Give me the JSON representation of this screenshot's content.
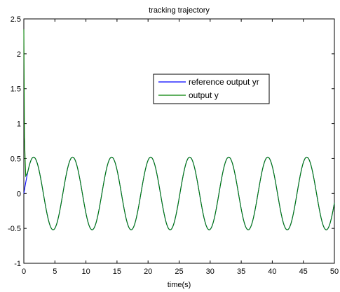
{
  "chart_data": {
    "type": "line",
    "title": "tracking trajectory",
    "xlabel": "time(s)",
    "ylabel": "",
    "xlim": [
      0,
      50
    ],
    "ylim": [
      -1,
      2.5
    ],
    "xticks": [
      0,
      5,
      10,
      15,
      20,
      25,
      30,
      35,
      40,
      45,
      50
    ],
    "xtick_labels": [
      "0",
      "5",
      "10",
      "15",
      "20",
      "25",
      "30",
      "35",
      "40",
      "45",
      "50"
    ],
    "yticks": [
      -1,
      -0.5,
      0,
      0.5,
      1,
      1.5,
      2,
      2.5
    ],
    "ytick_labels": [
      "-1",
      "-0.5",
      "0",
      "0.5",
      "1",
      "1.5",
      "2",
      "2.5"
    ],
    "grid": false,
    "legend_position": "upper-right",
    "series": [
      {
        "name": "reference output yr",
        "color": "#0000ff",
        "function": "0.52*sin(x)",
        "x_range": [
          0,
          50
        ],
        "note_points": [
          [
            0,
            0
          ],
          [
            1.57,
            0.52
          ],
          [
            4.71,
            -0.52
          ],
          [
            7.85,
            0.52
          ],
          [
            10.99,
            -0.52
          ],
          [
            14.14,
            0.52
          ],
          [
            17.28,
            -0.52
          ],
          [
            20.42,
            0.52
          ],
          [
            23.56,
            -0.52
          ],
          [
            26.7,
            0.52
          ],
          [
            29.85,
            -0.52
          ],
          [
            32.99,
            0.52
          ],
          [
            36.13,
            -0.52
          ],
          [
            39.27,
            0.52
          ],
          [
            42.41,
            -0.52
          ],
          [
            45.55,
            0.52
          ],
          [
            48.69,
            -0.52
          ],
          [
            50,
            -0.14
          ]
        ]
      },
      {
        "name": "output y",
        "color": "#008000",
        "function": "0.52*sin(x) with initial transient",
        "x_range": [
          0,
          50
        ],
        "initial_points": [
          [
            0,
            2.35
          ],
          [
            0.1,
            0.8
          ],
          [
            0.3,
            0.25
          ],
          [
            0.6,
            0.3
          ]
        ],
        "note_points": [
          [
            0,
            2.35
          ],
          [
            1.57,
            0.52
          ],
          [
            4.71,
            -0.52
          ],
          [
            7.85,
            0.52
          ],
          [
            10.99,
            -0.52
          ],
          [
            14.14,
            0.52
          ],
          [
            17.28,
            -0.52
          ],
          [
            20.42,
            0.52
          ],
          [
            23.56,
            -0.52
          ],
          [
            26.7,
            0.52
          ],
          [
            29.85,
            -0.52
          ],
          [
            32.99,
            0.52
          ],
          [
            36.13,
            -0.52
          ],
          [
            39.27,
            0.52
          ],
          [
            42.41,
            -0.52
          ],
          [
            45.55,
            0.52
          ],
          [
            48.69,
            -0.52
          ],
          [
            50,
            -0.14
          ]
        ]
      }
    ]
  }
}
